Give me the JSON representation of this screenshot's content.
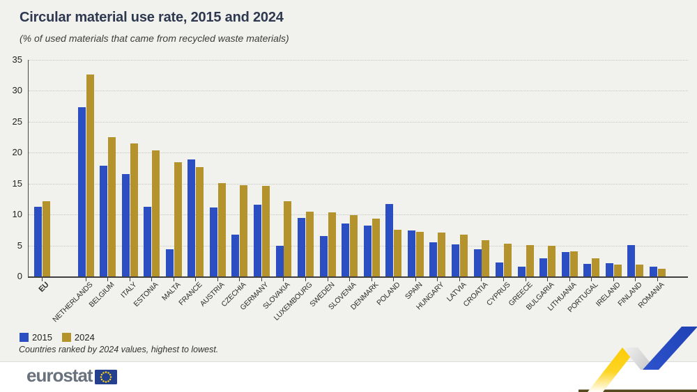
{
  "header": {
    "title": "Circular material use rate, 2015 and 2024",
    "subtitle": "(% of used materials that came from recycled waste materials)"
  },
  "chart_data": {
    "type": "bar",
    "categories": [
      "EU",
      "NETHERLANDS",
      "BELGIUM",
      "ITALY",
      "ESTONIA",
      "MALTA",
      "FRANCE",
      "AUSTRIA",
      "CZECHIA",
      "GERMANY",
      "SLOVAKIA",
      "LUXEMBOURG",
      "SWEDEN",
      "SLOVENIA",
      "DENMARK",
      "POLAND",
      "SPAIN",
      "HUNGARY",
      "LATVIA",
      "CROATIA",
      "CYPRUS",
      "GREECE",
      "BULGARIA",
      "LITHUANIA",
      "PORTUGAL",
      "IRELAND",
      "FINLAND",
      "ROMANIA"
    ],
    "series": [
      {
        "name": "2015",
        "color": "#2b4fc2",
        "values": [
          11.2,
          27.3,
          17.9,
          16.6,
          11.3,
          4.4,
          18.9,
          11.1,
          6.8,
          11.6,
          4.9,
          9.5,
          6.5,
          8.5,
          8.2,
          11.7,
          7.4,
          5.5,
          5.2,
          4.4,
          2.3,
          1.6,
          2.9,
          3.9,
          2.0,
          2.1,
          5.1,
          1.6
        ]
      },
      {
        "name": "2024",
        "color": "#b5932c",
        "values": [
          12.2,
          32.6,
          22.5,
          21.5,
          20.4,
          18.5,
          17.7,
          15.1,
          14.7,
          14.6,
          12.1,
          10.5,
          10.4,
          9.9,
          9.3,
          7.5,
          7.2,
          7.1,
          6.7,
          5.8,
          5.3,
          5.1,
          4.9,
          4.1,
          2.9,
          1.9,
          1.9,
          1.2
        ]
      }
    ],
    "title": "Circular material use rate, 2015 and 2024",
    "xlabel": "",
    "ylabel": "",
    "ylim": [
      0,
      35
    ],
    "y_ticks": [
      0,
      5,
      10,
      15,
      20,
      25,
      30,
      35
    ],
    "grid": "horizontal-dotted",
    "legend_position": "bottom-left",
    "annotation": "Countries ranked by 2024 values, highest to lowest."
  },
  "legend": {
    "items": [
      {
        "label": "2015",
        "color": "#2b4fc2"
      },
      {
        "label": "2024",
        "color": "#b5932c"
      }
    ]
  },
  "footer": {
    "note": "Countries ranked by 2024 values, highest to lowest.",
    "logo_text": "eurostat"
  },
  "colors": {
    "background": "#f1f1ee",
    "bar_2015": "#2b4fc2",
    "bar_2024": "#b5932c",
    "title_text": "#2e3950",
    "ribbon_yellow": "#fcd011",
    "ribbon_blue": "#2a4fc4",
    "eu_flag_blue": "#24408e",
    "eu_star_yellow": "#ffd617"
  }
}
